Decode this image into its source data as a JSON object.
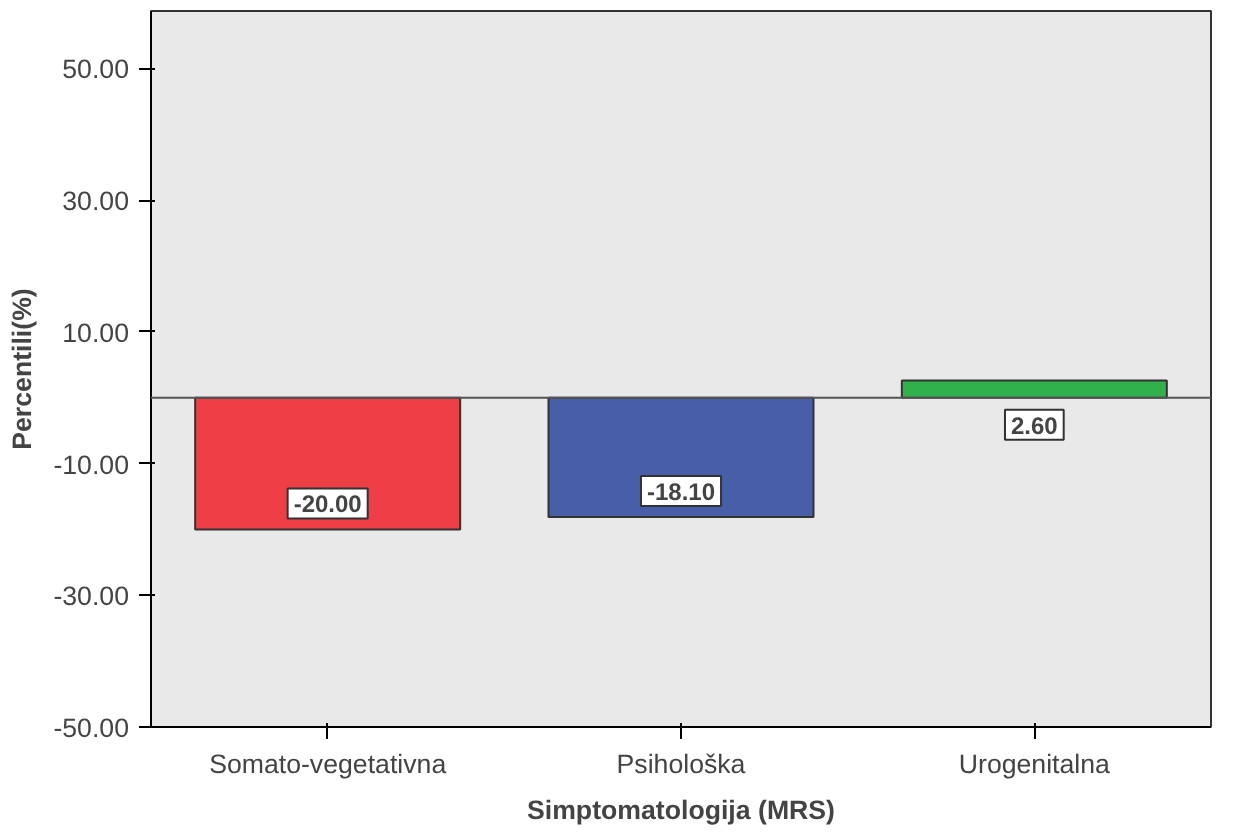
{
  "chart_data": {
    "type": "bar",
    "xlabel": "Simptomatologija (MRS)",
    "ylabel": "Percentili(%)",
    "categories": [
      "Somato-vegetativna",
      "Psihološka",
      "Urogenitalna"
    ],
    "values": [
      -20.0,
      -18.1,
      2.6
    ],
    "colors": [
      "#ef3f46",
      "#485ea9",
      "#31b14c"
    ],
    "value_labels": [
      "-20.00",
      "-18.10",
      "2.60"
    ],
    "ylim": [
      -50,
      58.7
    ],
    "yticks": [
      {
        "value": -50,
        "label": "-50.00"
      },
      {
        "value": -30,
        "label": "-30.00"
      },
      {
        "value": -10,
        "label": "-10.00"
      },
      {
        "value": 10,
        "label": "10.00"
      },
      {
        "value": 30,
        "label": "30.00"
      },
      {
        "value": 50,
        "label": "50.00"
      }
    ],
    "ref_lines": [
      {
        "axis": "y",
        "value": 0,
        "color": "#555555"
      }
    ],
    "grid": false
  }
}
